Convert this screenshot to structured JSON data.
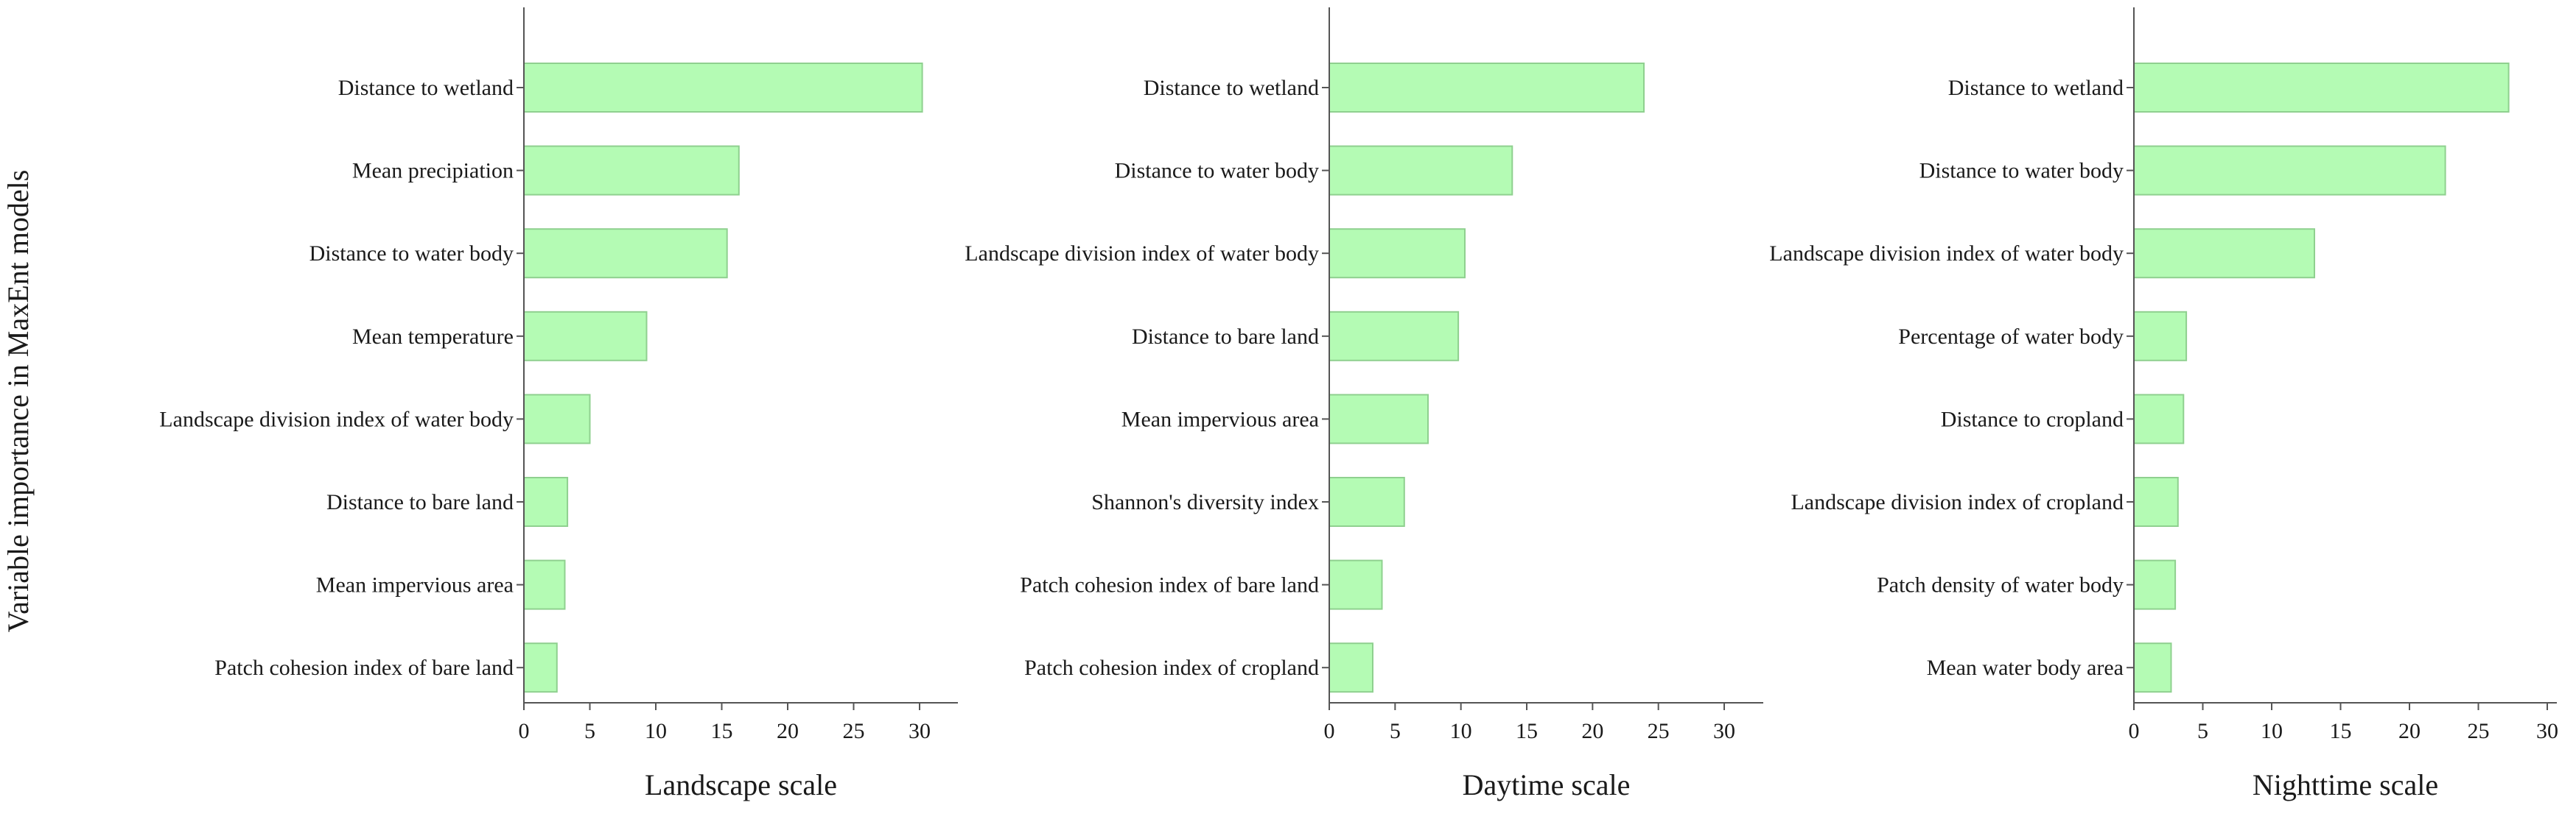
{
  "ylabel": "Variable importance in MaxEnt models",
  "colors": {
    "bar_fill": "#b4fbb4",
    "bar_stroke": "#8fd08f",
    "axis": "#555555"
  },
  "chart_data": [
    {
      "type": "bar",
      "orientation": "horizontal",
      "xlabel": "Landscape scale",
      "xlim": [
        0,
        32
      ],
      "xticks": [
        0,
        5,
        10,
        15,
        20,
        25,
        30
      ],
      "categories": [
        "Distance to wetland",
        "Mean precipiation",
        "Distance to water body",
        "Mean temperature",
        "Landscape division index of water body",
        "Distance to bare land",
        "Mean impervious area",
        "Patch cohesion index of bare land"
      ],
      "values": [
        30.2,
        16.3,
        15.4,
        9.3,
        5.0,
        3.3,
        3.1,
        2.5
      ]
    },
    {
      "type": "bar",
      "orientation": "horizontal",
      "xlabel": "Daytime scale",
      "xlim": [
        0,
        32
      ],
      "xticks": [
        0,
        5,
        10,
        15,
        20,
        25,
        30
      ],
      "categories": [
        "Distance to wetland",
        "Distance to water body",
        "Landscape division index of water body",
        "Distance to bare land",
        "Mean impervious area",
        "Shannon's diversity index",
        "Patch cohesion index of bare land",
        "Patch cohesion index of cropland"
      ],
      "values": [
        23.9,
        13.9,
        10.3,
        9.8,
        7.5,
        5.7,
        4.0,
        3.3
      ]
    },
    {
      "type": "bar",
      "orientation": "horizontal",
      "xlabel": "Nighttime scale",
      "xlim": [
        0,
        31
      ],
      "xticks": [
        0,
        5,
        10,
        15,
        20,
        25,
        30
      ],
      "categories": [
        "Distance to wetland",
        "Distance to water body",
        "Landscape division index of water body",
        "Percentage of water body",
        "Distance to cropland",
        "Landscape division index of cropland",
        "Patch density of water body",
        "Mean water body area"
      ],
      "values": [
        27.2,
        22.6,
        13.1,
        3.8,
        3.6,
        3.2,
        3.0,
        2.7
      ]
    }
  ]
}
